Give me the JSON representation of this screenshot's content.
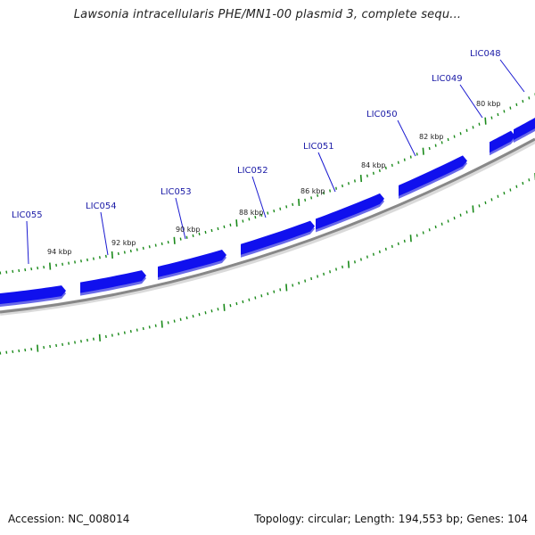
{
  "title": "Lawsonia intracellularis PHE/MN1-00 plasmid 3, complete sequ...",
  "footer": {
    "accession": "Accession: NC_008014",
    "summary": "Topology: circular; Length: 194,553 bp; Genes: 104"
  },
  "kbp_ticks": [
    {
      "label": "94 kbp"
    },
    {
      "label": "92 kbp"
    },
    {
      "label": "90 kbp"
    },
    {
      "label": "88 kbp"
    },
    {
      "label": "86 kbp"
    },
    {
      "label": "84 kbp"
    },
    {
      "label": "82 kbp"
    },
    {
      "label": "80 kbp"
    }
  ],
  "genes": [
    {
      "label": "LIC055"
    },
    {
      "label": "LIC054"
    },
    {
      "label": "LIC053"
    },
    {
      "label": "LIC052"
    },
    {
      "label": "LIC051"
    },
    {
      "label": "LIC050"
    },
    {
      "label": "LIC049"
    },
    {
      "label": "LIC048"
    }
  ],
  "colors": {
    "gene": "#1010ee",
    "gene_shadow": "#6a6ae8",
    "backbone": "#888888",
    "tick": "#1a8a1a",
    "gene_label": "#1a1aa6"
  }
}
